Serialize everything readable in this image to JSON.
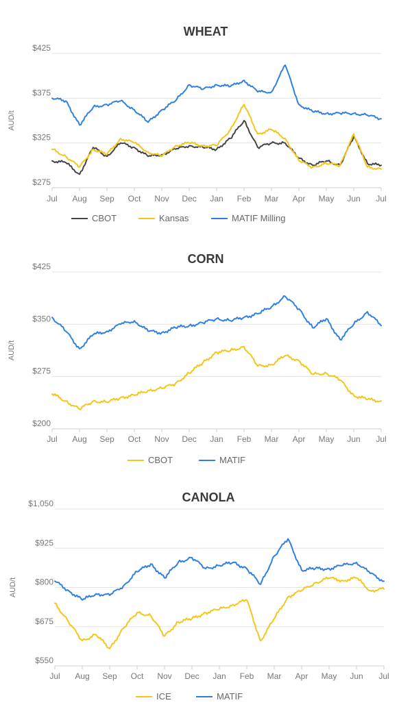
{
  "chart_data": [
    {
      "type": "line",
      "title": "WHEAT",
      "ylabel": "AUD/t",
      "ylim": [
        275,
        425
      ],
      "yticks": [
        "$425",
        "$375",
        "$325",
        "$275"
      ],
      "ytick_values": [
        425,
        375,
        325,
        275
      ],
      "xticks": [
        "Jul",
        "Aug",
        "Sep",
        "Oct",
        "Nov",
        "Dec",
        "Jan",
        "Feb",
        "Mar",
        "Apr",
        "May",
        "Jun",
        "Jul"
      ],
      "grid": true,
      "legend": "bottom",
      "series": [
        {
          "name": "CBOT",
          "color": "#444444",
          "x": [
            0,
            0.5,
            1,
            1.5,
            2,
            2.5,
            3,
            3.5,
            4,
            4.5,
            5,
            5.5,
            6,
            6.5,
            7,
            7.5,
            8,
            8.5,
            9,
            9.5,
            10,
            10.5,
            11,
            11.5,
            12
          ],
          "values": [
            305,
            303,
            290,
            320,
            310,
            325,
            320,
            310,
            312,
            318,
            322,
            320,
            318,
            330,
            350,
            320,
            325,
            325,
            308,
            300,
            305,
            300,
            332,
            302,
            300
          ]
        },
        {
          "name": "Kansas",
          "color": "#f5c518",
          "x": [
            0,
            0.5,
            1,
            1.5,
            2,
            2.5,
            3,
            3.5,
            4,
            4.5,
            5,
            5.5,
            6,
            6.5,
            7,
            7.5,
            8,
            8.5,
            9,
            9.5,
            10,
            10.5,
            11,
            11.5,
            12
          ],
          "values": [
            318,
            310,
            298,
            318,
            312,
            330,
            325,
            315,
            310,
            322,
            325,
            322,
            322,
            340,
            368,
            335,
            340,
            330,
            305,
            298,
            302,
            300,
            335,
            298,
            296
          ]
        },
        {
          "name": "MATIF Milling",
          "color": "#2f7fe0",
          "x": [
            0,
            0.5,
            1,
            1.5,
            2,
            2.5,
            3,
            3.5,
            4,
            4.5,
            5,
            5.5,
            6,
            6.5,
            7,
            7.5,
            8,
            8.5,
            9,
            9.5,
            10,
            10.5,
            11,
            11.5,
            12
          ],
          "values": [
            375,
            372,
            345,
            365,
            368,
            372,
            362,
            348,
            362,
            372,
            390,
            385,
            390,
            388,
            395,
            382,
            382,
            412,
            368,
            360,
            358,
            358,
            358,
            356,
            352
          ]
        }
      ]
    },
    {
      "type": "line",
      "title": "CORN",
      "ylabel": "AUD/t",
      "ylim": [
        200,
        425
      ],
      "yticks": [
        "$425",
        "$350",
        "$275",
        "$200"
      ],
      "ytick_values": [
        425,
        350,
        275,
        200
      ],
      "xticks": [
        "Jul",
        "Aug",
        "Sep",
        "Oct",
        "Nov",
        "Dec",
        "Jan",
        "Feb",
        "Mar",
        "Apr",
        "May",
        "Jun",
        "Jul"
      ],
      "grid": true,
      "legend": "bottom",
      "series": [
        {
          "name": "CBOT",
          "color": "#f5c518",
          "x": [
            0,
            0.5,
            1,
            1.5,
            2,
            2.5,
            3,
            3.5,
            4,
            4.5,
            5,
            5.5,
            6,
            6.5,
            7,
            7.5,
            8,
            8.5,
            9,
            9.5,
            10,
            10.5,
            11,
            11.5,
            12
          ],
          "values": [
            250,
            240,
            228,
            240,
            238,
            245,
            248,
            255,
            258,
            265,
            280,
            295,
            310,
            312,
            318,
            290,
            292,
            305,
            298,
            278,
            280,
            270,
            248,
            242,
            240
          ]
        },
        {
          "name": "MATIF",
          "color": "#2f7fe0",
          "x": [
            0,
            0.5,
            1,
            1.5,
            2,
            2.5,
            3,
            3.5,
            4,
            4.5,
            5,
            5.5,
            6,
            6.5,
            7,
            7.5,
            8,
            8.5,
            9,
            9.5,
            10,
            10.5,
            11,
            11.5,
            12
          ],
          "values": [
            360,
            340,
            315,
            335,
            340,
            350,
            355,
            340,
            338,
            345,
            348,
            352,
            358,
            355,
            360,
            365,
            375,
            390,
            372,
            345,
            358,
            328,
            350,
            368,
            348
          ]
        }
      ]
    },
    {
      "type": "line",
      "title": "CANOLA",
      "ylabel": "AUD/t",
      "ylim": [
        550,
        1050
      ],
      "yticks": [
        "$1,050",
        "$925",
        "$800",
        "$675",
        "$550"
      ],
      "ytick_values": [
        1050,
        925,
        800,
        675,
        550
      ],
      "xticks": [
        "Jul",
        "Aug",
        "Sep",
        "Oct",
        "Nov",
        "Dec",
        "Jan",
        "Feb",
        "Mar",
        "Apr",
        "May",
        "Jun",
        "Jul"
      ],
      "grid": true,
      "legend": "bottom",
      "series": [
        {
          "name": "ICE",
          "color": "#f5c518",
          "x": [
            0,
            0.5,
            1,
            1.5,
            2,
            2.5,
            3,
            3.5,
            4,
            4.5,
            5,
            5.5,
            6,
            6.5,
            7,
            7.5,
            8,
            8.5,
            9,
            9.5,
            10,
            10.5,
            11,
            11.5,
            12
          ],
          "values": [
            750,
            690,
            630,
            650,
            605,
            670,
            720,
            710,
            645,
            690,
            700,
            720,
            730,
            745,
            760,
            630,
            700,
            770,
            790,
            815,
            830,
            822,
            830,
            790,
            795
          ]
        },
        {
          "name": "MATIF",
          "color": "#2f7fe0",
          "x": [
            0,
            0.5,
            1,
            1.5,
            2,
            2.5,
            3,
            3.5,
            4,
            4.5,
            5,
            5.5,
            6,
            6.5,
            7,
            7.5,
            8,
            8.5,
            9,
            9.5,
            10,
            10.5,
            11,
            11.5,
            12
          ],
          "values": [
            820,
            790,
            760,
            780,
            775,
            805,
            850,
            875,
            830,
            880,
            895,
            860,
            870,
            880,
            860,
            810,
            900,
            955,
            855,
            860,
            860,
            870,
            880,
            845,
            820
          ]
        }
      ]
    }
  ]
}
